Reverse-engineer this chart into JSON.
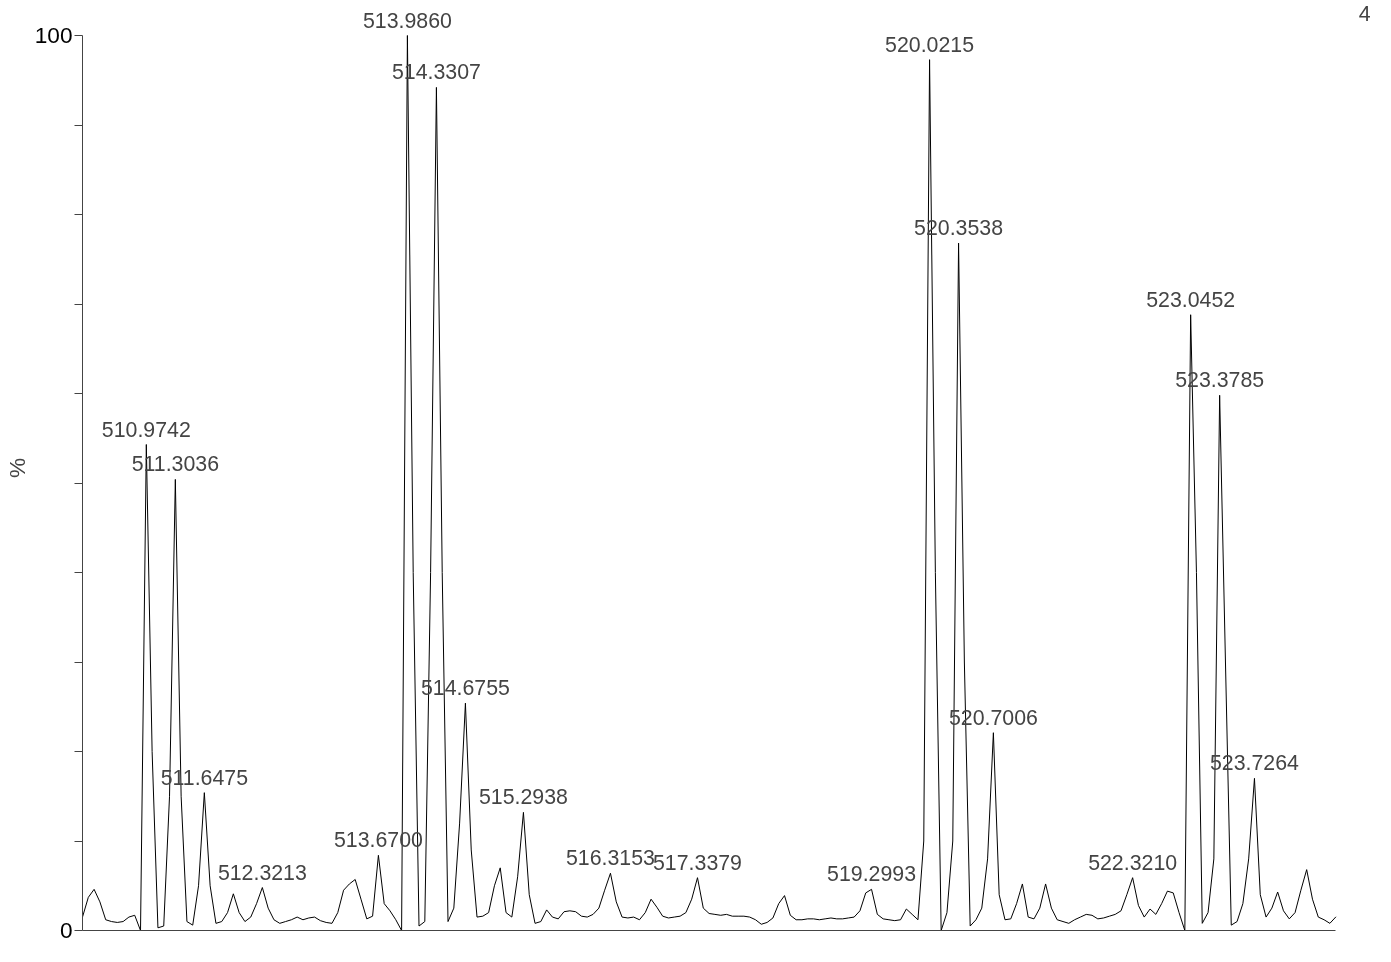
{
  "chart_data": {
    "type": "line",
    "ylabel": "%",
    "color": "#000000",
    "tick_labels": "y",
    "grid": false,
    "marker": "none",
    "line_style": "solid",
    "categories": [
      null,
      null,
      null,
      null,
      null,
      null,
      null,
      null,
      null,
      null,
      null,
      null,
      null,
      null,
      null,
      null,
      null,
      null,
      null,
      null,
      null,
      null,
      null,
      null,
      null,
      null,
      null,
      null,
      null,
      null,
      null,
      null,
      null,
      null,
      null,
      null,
      null,
      null,
      null,
      null,
      null,
      null,
      null,
      null,
      null,
      null,
      null,
      null,
      null,
      null,
      null,
      null,
      null,
      null,
      null,
      null,
      null,
      null,
      null,
      null,
      null,
      null,
      null,
      null,
      null,
      null,
      null,
      null,
      null,
      null,
      null,
      null,
      null,
      null,
      null,
      null,
      null,
      null,
      null,
      null,
      null,
      null,
      null,
      null,
      null,
      null,
      null,
      null,
      null,
      null,
      null,
      null,
      null,
      null,
      null,
      null,
      null,
      null,
      null,
      null,
      null,
      null,
      null,
      null,
      null,
      null,
      null,
      null,
      null,
      null,
      null,
      null,
      null,
      null,
      null,
      null,
      null,
      null,
      null,
      null,
      null,
      null,
      null,
      null,
      null,
      null,
      null,
      null,
      null,
      null,
      null,
      null,
      null,
      null,
      null,
      null,
      null,
      null,
      null,
      null,
      null,
      null,
      null,
      null,
      null,
      null,
      null,
      null,
      null,
      null,
      null,
      null,
      null,
      null,
      null,
      null,
      null,
      null,
      null,
      null,
      null,
      null,
      null,
      null,
      null,
      null,
      null,
      null,
      null,
      null,
      null,
      null,
      null,
      null,
      null,
      null,
      null,
      null,
      null,
      null,
      null,
      null,
      null,
      null,
      null,
      null,
      null,
      null,
      null,
      null,
      null,
      null,
      null,
      null,
      null,
      null,
      null,
      null,
      null,
      null,
      null,
      null,
      null,
      null,
      null,
      null,
      null,
      null,
      null,
      null,
      null,
      null,
      null,
      null,
      null,
      null,
      null
    ],
    "ylim": [
      0,
      100
    ],
    "yticks": [
      0,
      {
        "value": 10,
        "label": null
      },
      {
        "value": 20,
        "label": null
      },
      {
        "value": 30,
        "label": null
      },
      {
        "value": 40,
        "label": null
      },
      {
        "value": 50,
        "label": null
      },
      {
        "value": 60,
        "label": null
      },
      {
        "value": 70,
        "label": null
      },
      {
        "value": 80,
        "label": null
      },
      {
        "value": 90,
        "label": null
      },
      100
    ],
    "values": [
      1.5,
      3.7,
      4.6,
      3.2,
      1.2,
      1.0,
      0.9,
      1.0,
      1.5,
      1.7,
      0,
      54.3,
      20,
      0.3,
      0.5,
      15,
      50.4,
      15,
      1,
      0.6,
      5,
      15.4,
      5,
      0.8,
      1,
      2,
      4.1,
      2,
      1,
      1.5,
      3,
      4.8,
      2.5,
      1.2,
      0.8,
      1.0,
      1.2,
      1.5,
      1.2,
      1.4,
      1.5,
      1.1,
      0.9,
      0.8,
      2,
      4.5,
      5.2,
      5.7,
      3.5,
      1.3,
      1.6,
      8.4,
      3,
      2.2,
      1.2,
      0,
      100,
      40,
      0.5,
      1,
      40,
      94.2,
      40,
      1,
      2.5,
      12,
      25.4,
      9,
      1.5,
      1.6,
      2,
      5,
      7.0,
      2,
      1.5,
      6,
      13.2,
      4,
      0.8,
      1,
      2.3,
      1.5,
      1.3,
      2.1,
      2.2,
      2.1,
      1.6,
      1.5,
      1.8,
      2.5,
      4.5,
      6.4,
      3.2,
      1.5,
      1.4,
      1.5,
      1.2,
      2,
      3.5,
      2.6,
      1.6,
      1.4,
      1.5,
      1.6,
      2,
      3.5,
      5.9,
      2.5,
      1.9,
      1.8,
      1.7,
      1.8,
      1.6,
      1.6,
      1.6,
      1.5,
      1.2,
      0.7,
      0.9,
      1.4,
      3,
      3.9,
      1.7,
      1.2,
      1.2,
      1.3,
      1.3,
      1.2,
      1.3,
      1.4,
      1.3,
      1.3,
      1.4,
      1.5,
      2.2,
      4.2,
      4.6,
      1.8,
      1.3,
      1.2,
      1.1,
      1.2,
      2.4,
      1.8,
      1.2,
      10,
      97.3,
      40,
      0,
      2,
      10,
      76.8,
      30,
      0.5,
      1.2,
      2.5,
      8,
      22.1,
      4,
      1.2,
      1.3,
      3,
      5.2,
      1.5,
      1.3,
      2.5,
      5.2,
      2.5,
      1.2,
      1,
      0.8,
      1.2,
      1.5,
      1.8,
      1.7,
      1.3,
      1.4,
      1.6,
      1.8,
      2.2,
      4,
      5.9,
      2.8,
      1.5,
      2.4,
      1.8,
      3,
      4.4,
      4.2,
      2,
      0,
      68.8,
      40,
      0.8,
      2,
      8,
      59.8,
      30,
      0.6,
      1,
      3,
      8,
      17.0,
      4,
      1.5,
      2.5,
      4.3,
      2.2,
      1.3,
      2,
      4.5,
      6.8,
      3.5,
      1.5,
      1.2,
      0.8,
      1.5
    ],
    "annotations": [
      {
        "text": "510.9742",
        "y": 54.3
      },
      {
        "text": "511.3036",
        "y": 50.4
      },
      {
        "text": "511.6475",
        "y": 15.4
      },
      {
        "text": "512.3213",
        "y": 4.8
      },
      {
        "text": "513.6700",
        "y": 8.4
      },
      {
        "text": "513.9860",
        "y": 100
      },
      {
        "text": "514.3307",
        "y": 94.2
      },
      {
        "text": "514.6755",
        "y": 25.4
      },
      {
        "text": "515.2938",
        "y": 13.2
      },
      {
        "text": "516.3153",
        "y": 6.4
      },
      {
        "text": "517.3379",
        "y": 5.9
      },
      {
        "text": "519.2993",
        "y": 4.6
      },
      {
        "text": "520.0215",
        "y": 97.3
      },
      {
        "text": "520.3538",
        "y": 76.8
      },
      {
        "text": "520.7006",
        "y": 22.1
      },
      {
        "text": "522.3210",
        "y": 5.9
      },
      {
        "text": "523.0452",
        "y": 68.8
      },
      {
        "text": "523.3785",
        "y": 59.8
      },
      {
        "text": "523.7264",
        "y": 17.0
      },
      "4"
    ]
  }
}
